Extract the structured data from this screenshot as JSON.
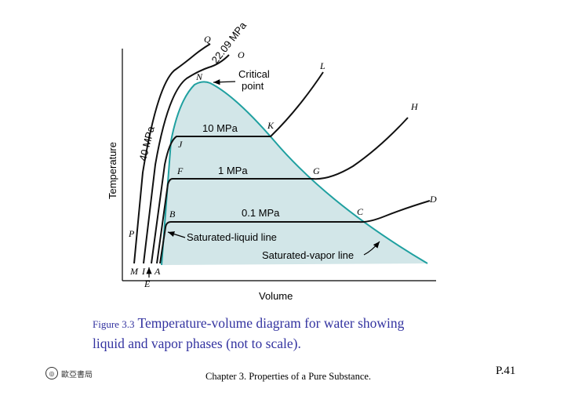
{
  "diagram": {
    "axis_y_label": "Temperature",
    "axis_x_label": "Volume",
    "pressures": {
      "p40": "40 MPa",
      "p22": "22.09 MPa",
      "p10": "10 MPa",
      "p1": "1 MPa",
      "p01": "0.1 MPa"
    },
    "callouts": {
      "critical_line1": "Critical",
      "critical_line2": "point",
      "sat_liquid": "Saturated-liquid line",
      "sat_vapor": "Saturated-vapor line"
    },
    "points": {
      "Q": "Q",
      "O": "O",
      "N": "N",
      "L": "L",
      "H": "H",
      "K": "K",
      "J": "J",
      "F": "F",
      "G": "G",
      "B": "B",
      "C": "C",
      "D": "D",
      "P": "P",
      "M": "M",
      "I": "I",
      "A": "A",
      "E": "E"
    },
    "colors": {
      "dome_fill": "#d2e6e8",
      "dome_edge": "#1fa0a0",
      "isobar": "#111111"
    }
  },
  "caption": {
    "figure_label": "Figure 3.3",
    "text_line1": "Temperature-volume diagram for water showing",
    "text_line2": "liquid and vapor phases (not to scale)."
  },
  "footer": {
    "publisher_icon": "publisher-logo-icon",
    "publisher": "歐亞書局",
    "chapter": "Chapter 3. Properties of a Pure Substance.",
    "page": "P.41"
  }
}
